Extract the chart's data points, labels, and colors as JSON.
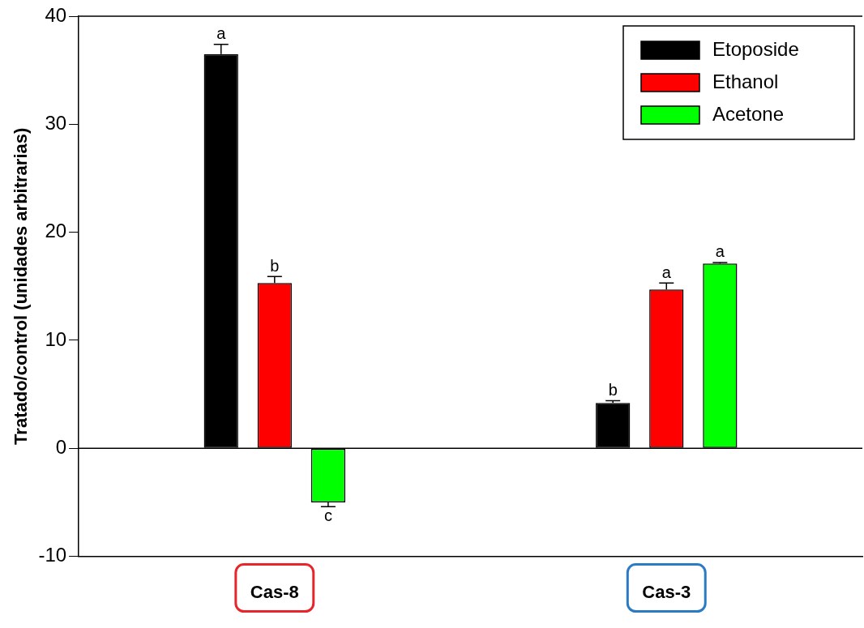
{
  "chart_data": {
    "type": "bar",
    "ylabel": "Tratado/control (unidades arbitrarias)",
    "categories": [
      "Cas-8",
      "Cas-3"
    ],
    "series": [
      {
        "name": "Etoposide",
        "color": "#000000",
        "values": [
          36.5,
          4.2
        ],
        "errors": [
          [
            36.5,
            37.4
          ],
          [
            4.2,
            4.4
          ]
        ],
        "value_labels": [
          "a",
          "b"
        ]
      },
      {
        "name": "Ethanol",
        "color": "#ff0000",
        "values": [
          15.3,
          14.7
        ],
        "errors": [
          [
            15.3,
            15.9
          ],
          [
            14.7,
            15.3
          ]
        ],
        "value_labels": [
          "b",
          "a"
        ]
      },
      {
        "name": "Acetone",
        "color": "#00ff00",
        "values": [
          -5.0,
          17.1
        ],
        "errors": [
          [
            -5.4,
            -5.0
          ],
          [
            17.1,
            17.2
          ]
        ],
        "value_labels": [
          "c",
          "a"
        ]
      }
    ],
    "ylim": [
      -10,
      40
    ],
    "yticks": [
      -10,
      0,
      10,
      20,
      30,
      40
    ],
    "ref_lines": [
      {
        "axis": "y",
        "value": 0
      }
    ],
    "grid": false,
    "legend": "top right"
  }
}
